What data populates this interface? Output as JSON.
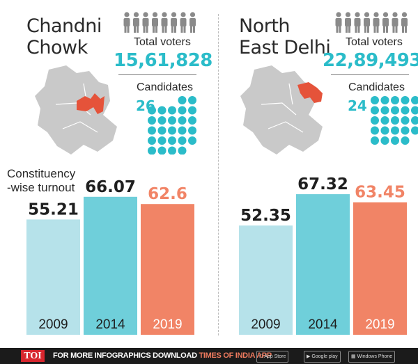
{
  "colors": {
    "teal": "#2bbcc9",
    "bar_2009": "#b6e2ea",
    "bar_2014": "#6fcfda",
    "bar_2019": "#f18466",
    "map_grey": "#c9c9c9",
    "highlight": "#e5533a",
    "person_icon": "#8a8a8a"
  },
  "panels": [
    {
      "name_line1": "Chandni",
      "name_line2": "Chowk",
      "voters_label": "Total voters",
      "voters_value": "15,61,828",
      "candidates_label": "Candidates",
      "candidates_value": "26",
      "turnout_label_line1": "Constituency",
      "turnout_label_line2": "-wise turnout"
    },
    {
      "name_line1": "North",
      "name_line2": "East Delhi",
      "voters_label": "Total voters",
      "voters_value": "22,89,493",
      "candidates_label": "Candidates",
      "candidates_value": "24"
    }
  ],
  "chart_data": [
    {
      "type": "bar",
      "title": "Chandni Chowk",
      "ylabel": "Constituency-wise turnout",
      "categories": [
        "2009",
        "2014",
        "2019"
      ],
      "values": [
        55.21,
        66.07,
        62.6
      ],
      "labels": [
        "55.21",
        "66.07",
        "62.6"
      ]
    },
    {
      "type": "bar",
      "title": "North East Delhi",
      "categories": [
        "2009",
        "2014",
        "2019"
      ],
      "values": [
        52.35,
        67.32,
        63.45
      ],
      "labels": [
        "52.35",
        "67.32",
        "63.45"
      ]
    }
  ],
  "footer": {
    "logo": "TOI",
    "text": "FOR MORE INFOGRAPHICS DOWNLOAD",
    "app": "TIMES OF INDIA APP",
    "app_store": "App Store",
    "google_play": "Google play",
    "windows": "Windows Phone"
  }
}
